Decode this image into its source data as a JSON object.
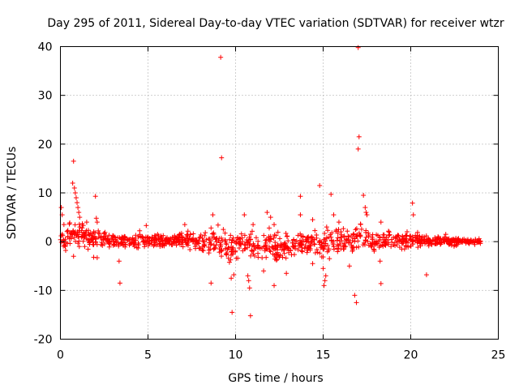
{
  "chart_data": {
    "type": "scatter",
    "title": "Day 295 of 2011, Sidereal Day-to-day VTEC variation (SDTVAR) for receiver wtzr",
    "xlabel": "GPS time / hours",
    "ylabel": "SDTVAR / TECUs",
    "xlim": [
      0,
      25
    ],
    "ylim": [
      -20,
      40
    ],
    "xticks": [
      0,
      5,
      10,
      15,
      20,
      25
    ],
    "yticks": [
      -20,
      -10,
      0,
      10,
      20,
      30,
      40
    ],
    "xtick_labels": [
      "0",
      "5",
      "10",
      "15",
      "20",
      "25"
    ],
    "ytick_labels": [
      "-20",
      "-10",
      "0",
      "10",
      "20",
      "30",
      "40"
    ],
    "grid": true,
    "marker": "+",
    "color": "#ff0000",
    "band": {
      "description": "dense cloud of points (approx. min/max per hour)",
      "x": [
        0.0,
        0.5,
        1.0,
        2.0,
        3.0,
        4.0,
        5.0,
        6.0,
        7.0,
        8.0,
        8.5,
        9.0,
        9.5,
        10.0,
        10.5,
        11.0,
        11.5,
        12.0,
        12.5,
        13.0,
        13.5,
        14.0,
        14.5,
        15.0,
        15.5,
        16.0,
        16.5,
        17.0,
        17.5,
        18.0,
        19.0,
        20.0,
        21.0,
        22.0,
        23.0,
        24.0
      ],
      "low": [
        -1.5,
        -2.0,
        -2.5,
        -1.8,
        -2.0,
        -2.2,
        -2.0,
        -2.0,
        -1.8,
        -2.5,
        -3.0,
        -4.0,
        -5.0,
        -4.5,
        -3.5,
        -5.0,
        -4.0,
        -5.5,
        -6.0,
        -4.5,
        -3.5,
        -3.0,
        -4.0,
        -5.0,
        -4.0,
        -3.5,
        -4.0,
        -4.5,
        -3.5,
        -3.0,
        -2.5,
        -2.0,
        -1.5,
        -1.2,
        -1.0,
        -0.8
      ],
      "high": [
        2.0,
        4.0,
        5.0,
        3.0,
        2.5,
        2.5,
        2.5,
        2.5,
        2.5,
        2.5,
        3.0,
        3.0,
        2.5,
        2.5,
        2.5,
        3.0,
        3.0,
        4.0,
        3.0,
        2.5,
        2.5,
        2.5,
        3.0,
        3.5,
        3.5,
        4.0,
        4.0,
        5.0,
        4.0,
        3.0,
        2.5,
        2.5,
        2.0,
        1.5,
        1.0,
        0.5
      ]
    },
    "points": [
      {
        "x": 0.05,
        "y": 7.0
      },
      {
        "x": 0.1,
        "y": 5.5
      },
      {
        "x": 0.2,
        "y": 3.5
      },
      {
        "x": 0.3,
        "y": -1.8
      },
      {
        "x": 0.7,
        "y": 12.0
      },
      {
        "x": 0.75,
        "y": 16.5
      },
      {
        "x": 0.8,
        "y": 11.0
      },
      {
        "x": 0.85,
        "y": 10.0
      },
      {
        "x": 0.9,
        "y": 9.0
      },
      {
        "x": 0.95,
        "y": 8.0
      },
      {
        "x": 1.0,
        "y": 7.0
      },
      {
        "x": 1.05,
        "y": 6.0
      },
      {
        "x": 1.1,
        "y": 5.0
      },
      {
        "x": 0.75,
        "y": -3.0
      },
      {
        "x": 1.5,
        "y": 4.0
      },
      {
        "x": 2.0,
        "y": 9.3
      },
      {
        "x": 2.05,
        "y": 4.8
      },
      {
        "x": 2.1,
        "y": 4.0
      },
      {
        "x": 1.9,
        "y": -3.2
      },
      {
        "x": 2.1,
        "y": -3.3
      },
      {
        "x": 3.4,
        "y": -8.5
      },
      {
        "x": 3.35,
        "y": -4.0
      },
      {
        "x": 4.9,
        "y": 3.3
      },
      {
        "x": 7.1,
        "y": 3.5
      },
      {
        "x": 8.6,
        "y": -8.5
      },
      {
        "x": 8.7,
        "y": 5.5
      },
      {
        "x": 8.6,
        "y": 2.8
      },
      {
        "x": 9.0,
        "y": 3.4
      },
      {
        "x": 9.15,
        "y": 37.8
      },
      {
        "x": 9.2,
        "y": 17.2
      },
      {
        "x": 9.3,
        "y": 2.5
      },
      {
        "x": 9.8,
        "y": -14.5
      },
      {
        "x": 9.75,
        "y": -7.5
      },
      {
        "x": 9.9,
        "y": -6.8
      },
      {
        "x": 10.5,
        "y": 5.5
      },
      {
        "x": 10.7,
        "y": -7.0
      },
      {
        "x": 10.75,
        "y": -8.0
      },
      {
        "x": 10.8,
        "y": -9.5
      },
      {
        "x": 10.85,
        "y": -15.2
      },
      {
        "x": 11.0,
        "y": 3.5
      },
      {
        "x": 11.8,
        "y": 6.0
      },
      {
        "x": 12.0,
        "y": 5.0
      },
      {
        "x": 12.2,
        "y": -9.0
      },
      {
        "x": 11.6,
        "y": -6.0
      },
      {
        "x": 12.2,
        "y": 3.5
      },
      {
        "x": 12.9,
        "y": -6.5
      },
      {
        "x": 13.7,
        "y": 9.3
      },
      {
        "x": 13.7,
        "y": 5.5
      },
      {
        "x": 14.4,
        "y": 4.5
      },
      {
        "x": 14.4,
        "y": -4.5
      },
      {
        "x": 14.8,
        "y": 11.5
      },
      {
        "x": 15.1,
        "y": -8.0
      },
      {
        "x": 15.05,
        "y": -9.0
      },
      {
        "x": 15.15,
        "y": -7.0
      },
      {
        "x": 15.0,
        "y": -5.5
      },
      {
        "x": 15.2,
        "y": 3.0
      },
      {
        "x": 15.45,
        "y": 9.7
      },
      {
        "x": 15.6,
        "y": 5.5
      },
      {
        "x": 15.9,
        "y": 4.0
      },
      {
        "x": 16.5,
        "y": -5.0
      },
      {
        "x": 16.8,
        "y": -11.0
      },
      {
        "x": 16.9,
        "y": -12.5
      },
      {
        "x": 17.0,
        "y": 39.8
      },
      {
        "x": 17.05,
        "y": 21.5
      },
      {
        "x": 17.0,
        "y": 19.0
      },
      {
        "x": 17.3,
        "y": 9.5
      },
      {
        "x": 17.4,
        "y": 7.0
      },
      {
        "x": 17.45,
        "y": 6.0
      },
      {
        "x": 17.5,
        "y": 5.5
      },
      {
        "x": 18.25,
        "y": -4.0
      },
      {
        "x": 18.3,
        "y": -8.6
      },
      {
        "x": 18.3,
        "y": 4.0
      },
      {
        "x": 20.1,
        "y": 7.9
      },
      {
        "x": 20.15,
        "y": 5.5
      },
      {
        "x": 20.9,
        "y": -6.8
      },
      {
        "x": 22.0,
        "y": 1.5
      },
      {
        "x": 23.9,
        "y": 0.6
      }
    ]
  }
}
